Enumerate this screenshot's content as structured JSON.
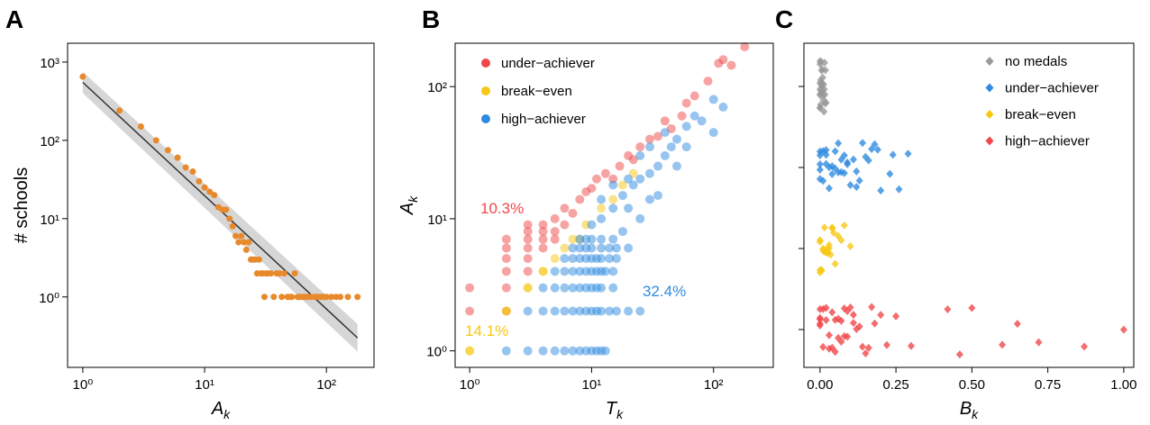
{
  "chart_data": [
    {
      "type": "scatter",
      "panel_label": "A",
      "ylabel": "# schools",
      "xlabel": {
        "text": "A",
        "subscript": "k"
      },
      "xscale": "log",
      "yscale": "log",
      "xlim": [
        0.75,
        246
      ],
      "ylim": [
        0.126,
        1740
      ],
      "xticks": [
        {
          "value": 1,
          "label": "10⁰"
        },
        {
          "value": 10,
          "label": "10¹"
        },
        {
          "value": 100,
          "label": "10²"
        }
      ],
      "yticks": [
        {
          "value": 1,
          "label": "10⁰"
        },
        {
          "value": 10,
          "label": "10¹"
        },
        {
          "value": 100,
          "label": "10²"
        },
        {
          "value": 1000,
          "label": "10³"
        }
      ],
      "color": "#e8892b",
      "x": [
        1,
        2,
        3,
        4,
        5,
        6,
        7,
        8,
        9,
        10,
        11,
        12,
        13,
        14,
        15,
        16,
        17,
        18,
        19,
        20,
        21,
        22,
        23,
        24,
        25,
        26,
        27,
        28,
        29,
        30,
        31,
        32,
        33,
        35,
        37,
        39,
        41,
        43,
        45,
        48,
        50,
        52,
        55,
        58,
        60,
        62,
        65,
        68,
        70,
        75,
        80,
        85,
        90,
        95,
        100,
        110,
        120,
        130,
        150,
        180
      ],
      "values": [
        650,
        240,
        150,
        100,
        75,
        60,
        45,
        40,
        30,
        25,
        22,
        20,
        14,
        13,
        13,
        10,
        8,
        6,
        5,
        6,
        5,
        4,
        5,
        3,
        3,
        3,
        2,
        3,
        2,
        2,
        1,
        2,
        2,
        2,
        1,
        2,
        2,
        1,
        2,
        1,
        1,
        1,
        2,
        1,
        1,
        1,
        1,
        1,
        1,
        1,
        1,
        1,
        1,
        1,
        1,
        1,
        1,
        1,
        1,
        1
      ],
      "fit": {
        "x": [
          1,
          180
        ],
        "y": [
          550,
          0.3
        ],
        "lower": [
          400,
          0.2
        ],
        "upper": [
          750,
          0.45
        ],
        "color": "#333333",
        "band_color": "#cccccc"
      }
    },
    {
      "type": "scatter",
      "panel_label": "B",
      "ylabel": {
        "text": "A",
        "subscript": "k"
      },
      "xlabel": {
        "text": "T",
        "subscript": "k"
      },
      "xscale": "log",
      "yscale": "log",
      "xlim": [
        0.76,
        309
      ],
      "ylim": [
        0.75,
        213
      ],
      "xticks": [
        {
          "value": 1,
          "label": "10⁰"
        },
        {
          "value": 10,
          "label": "10¹"
        },
        {
          "value": 100,
          "label": "10²"
        }
      ],
      "yticks": [
        {
          "value": 1,
          "label": "10⁰"
        },
        {
          "value": 10,
          "label": "10¹"
        },
        {
          "value": 100,
          "label": "10²"
        }
      ],
      "legend": "upper left",
      "series": [
        {
          "name": "under−achiever",
          "color": "#f0474a",
          "x": [
            1,
            1,
            2,
            2,
            2,
            2,
            2,
            2,
            3,
            3,
            3,
            3,
            3,
            3,
            4,
            4,
            4,
            4,
            5,
            5,
            5,
            6,
            6,
            7,
            8,
            9,
            10,
            11,
            13,
            15,
            17,
            20,
            22,
            25,
            30,
            35,
            40,
            45,
            55,
            60,
            70,
            90,
            110,
            120,
            140,
            180
          ],
          "values": [
            3,
            2,
            7,
            6,
            5,
            4,
            3,
            2,
            9,
            8,
            7,
            6,
            5,
            4,
            9,
            8,
            7,
            6,
            10,
            8,
            7,
            12,
            9,
            11,
            14,
            16,
            17,
            20,
            22,
            20,
            25,
            30,
            28,
            35,
            40,
            42,
            55,
            48,
            60,
            75,
            85,
            110,
            150,
            160,
            145,
            200
          ]
        },
        {
          "name": "break−even",
          "color": "#f7c815",
          "x": [
            1,
            1,
            2,
            2,
            3,
            3,
            4,
            4,
            5,
            6,
            7,
            8,
            9,
            12,
            15,
            18,
            22
          ],
          "values": [
            1,
            1,
            2,
            2,
            3,
            3,
            4,
            4,
            5,
            6,
            7,
            7,
            9,
            12,
            14,
            18,
            22
          ]
        },
        {
          "name": "high−achiever",
          "color": "#2f8be0",
          "x": [
            2,
            3,
            4,
            5,
            6,
            7,
            8,
            9,
            10,
            11,
            12,
            13,
            3,
            4,
            5,
            6,
            7,
            8,
            9,
            10,
            11,
            12,
            14,
            16,
            20,
            25,
            4,
            5,
            6,
            7,
            8,
            9,
            10,
            11,
            12,
            15,
            5,
            6,
            7,
            8,
            9,
            10,
            11,
            12,
            13,
            15,
            6,
            7,
            8,
            9,
            10,
            11,
            12,
            14,
            16,
            7,
            8,
            9,
            10,
            12,
            14,
            16,
            20,
            8,
            9,
            10,
            12,
            15,
            10,
            12,
            12,
            15,
            15,
            18,
            20,
            20,
            22,
            25,
            25,
            30,
            30,
            35,
            40,
            40,
            45,
            50,
            60,
            60,
            70,
            80,
            100,
            100,
            120,
            35,
            25,
            18,
            30,
            50
          ],
          "values": [
            1,
            1,
            1,
            1,
            1,
            1,
            1,
            1,
            1,
            1,
            1,
            1,
            2,
            2,
            2,
            2,
            2,
            2,
            2,
            2,
            2,
            2,
            2,
            2,
            2,
            2,
            3,
            3,
            3,
            3,
            3,
            3,
            3,
            3,
            3,
            3,
            4,
            4,
            4,
            4,
            4,
            4,
            4,
            4,
            4,
            4,
            5,
            5,
            5,
            5,
            5,
            5,
            5,
            5,
            5,
            6,
            6,
            6,
            6,
            6,
            6,
            6,
            6,
            7,
            7,
            7,
            7,
            7,
            9,
            10,
            14,
            12,
            18,
            15,
            12,
            20,
            18,
            20,
            30,
            22,
            35,
            25,
            30,
            45,
            35,
            40,
            50,
            35,
            60,
            55,
            80,
            45,
            70,
            15,
            10,
            8,
            14,
            25
          ]
        }
      ],
      "annotations": [
        {
          "text": "10.3%",
          "color": "#f0474a"
        },
        {
          "text": "32.4%",
          "color": "#2f8be0"
        },
        {
          "text": "14.1%",
          "color": "#f7c815"
        }
      ]
    },
    {
      "type": "strip",
      "panel_label": "C",
      "xlabel": {
        "text": "B",
        "subscript": "k"
      },
      "xlim": [
        -0.053,
        1.033
      ],
      "xticks": [
        {
          "value": 0,
          "label": "0.00"
        },
        0.25,
        {
          "value": 0.5,
          "label": "0.50"
        },
        0.75,
        {
          "value": 1,
          "label": "1.00"
        }
      ],
      "categories": [
        null,
        null,
        null,
        null
      ],
      "legend": "upper right",
      "series": [
        {
          "name": "no medals",
          "color": "#999999",
          "values": [
            0,
            0,
            0,
            0,
            0.002,
            0.004,
            0.006,
            0.008,
            0.01,
            0.012,
            0.015,
            0.018,
            0.02,
            0.003,
            0.005,
            0.007,
            0,
            0,
            0.001,
            0.009,
            0.011,
            0.014,
            0.016,
            0.004,
            0.002,
            0,
            0.006,
            0.013,
            0.017,
            0.008
          ]
        },
        {
          "name": "under−achiever",
          "color": "#2f8be0",
          "values": [
            0,
            0,
            0,
            0,
            0,
            0.01,
            0.02,
            0.03,
            0.04,
            0.05,
            0.06,
            0.07,
            0.08,
            0.09,
            0.1,
            0.11,
            0.12,
            0.13,
            0.14,
            0.15,
            0.17,
            0.19,
            0.2,
            0.23,
            0.26,
            0.29,
            0.01,
            0.02,
            0.03,
            0.05,
            0.07,
            0.09,
            0.04,
            0.06,
            0.02,
            0.12,
            0.16,
            0.18,
            0.24,
            0.08
          ]
        },
        {
          "name": "break−even",
          "color": "#f7c815",
          "values": [
            0,
            0,
            0,
            0,
            0.005,
            0.01,
            0.015,
            0.02,
            0.025,
            0.03,
            0.035,
            0.04,
            0.045,
            0.05,
            0.06,
            0.07,
            0.08,
            0.1,
            0.005,
            0.01,
            0.02,
            0.03,
            0.04,
            0.015,
            0.025
          ]
        },
        {
          "name": "high−achiever",
          "color": "#f0474a",
          "values": [
            0,
            0,
            0,
            0,
            0,
            0.01,
            0.02,
            0.03,
            0.04,
            0.05,
            0.06,
            0.07,
            0.08,
            0.09,
            0.1,
            0.11,
            0.12,
            0.13,
            0.14,
            0.15,
            0.16,
            0.18,
            0.2,
            0.22,
            0.3,
            0.42,
            0.46,
            0.5,
            0.6,
            0.65,
            0.72,
            0.87,
            1.0,
            0.01,
            0.03,
            0.05,
            0.02,
            0.04,
            0.07,
            0.09,
            0.11,
            0.06,
            0.08,
            0.17,
            0.25
          ]
        }
      ]
    }
  ]
}
